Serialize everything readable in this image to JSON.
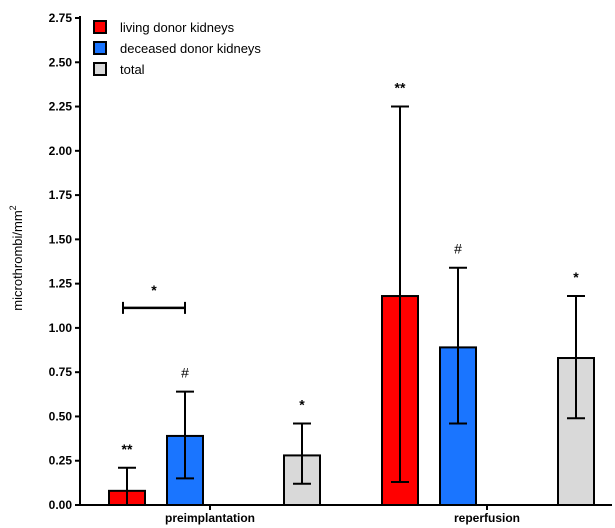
{
  "chart_data": {
    "type": "bar",
    "categories": [
      "preimplantation",
      "reperfusion"
    ],
    "ylabel": "microthrombi/mm",
    "ylabel_superscript": "2",
    "ylim": [
      0,
      2.75
    ],
    "yticks": [
      "0.00",
      "0.25",
      "0.50",
      "0.75",
      "1.00",
      "1.25",
      "1.50",
      "1.75",
      "2.00",
      "2.25",
      "2.50",
      "2.75"
    ],
    "series": [
      {
        "name": "living donor kidneys",
        "color": "#ff0000",
        "values": [
          0.08,
          1.18
        ],
        "err_low": [
          0.0,
          0.13
        ],
        "err_high": [
          0.21,
          2.25
        ],
        "annotations": [
          "**",
          "**"
        ]
      },
      {
        "name": "deceased donor kidneys",
        "color": "#1a75ff",
        "values": [
          0.39,
          0.89
        ],
        "err_low": [
          0.15,
          0.46
        ],
        "err_high": [
          0.64,
          1.34
        ],
        "annotations": [
          "#",
          "#"
        ]
      },
      {
        "name": "total",
        "color": "#d9d9d9",
        "values": [
          0.28,
          0.83
        ],
        "err_low": [
          0.12,
          0.49
        ],
        "err_high": [
          0.46,
          1.18
        ],
        "annotations": [
          "*",
          "*"
        ]
      }
    ],
    "bracket": {
      "label": "*",
      "y": 1.13,
      "between_series": [
        0,
        1
      ],
      "category": 0
    },
    "legend_position": "top-left",
    "grid": false
  }
}
